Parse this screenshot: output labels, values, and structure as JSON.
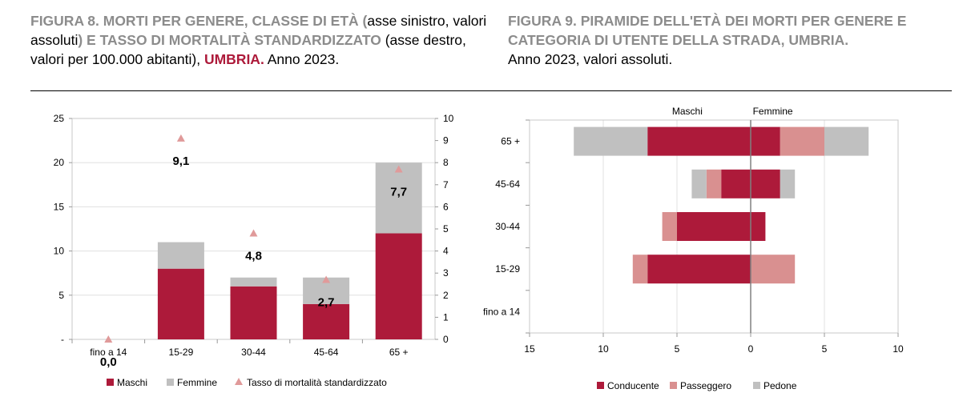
{
  "figure8": {
    "title_parts": [
      {
        "text": "FIGURA 8. MORTI PER GENERE, CLASSE DI ETÀ (",
        "style": "hl"
      },
      {
        "text": "asse sinistro, valori assoluti",
        "style": "pl"
      },
      {
        "text": ") E TASSO DI MORTALITÀ STANDARDIZZATO",
        "style": "hl"
      },
      {
        "text": " (asse destro, valori per 100.000 abitanti), ",
        "style": "pl"
      },
      {
        "text": "UMBRIA.",
        "style": "hl"
      },
      {
        "text": " Anno 2023.",
        "style": "pl"
      }
    ]
  },
  "figure9": {
    "title_parts": [
      {
        "text": "FIGURA 9. PIRAMIDE DELL'ETÀ DEI MORTI PER GENERE E CATEGORIA DI UTENTE DELLA STRADA, UMBRIA.",
        "style": "hl"
      },
      {
        "text": "Anno 2023, valori assoluti.",
        "style": "pl",
        "newline": true
      }
    ]
  },
  "colors": {
    "maschi": "#ad1a3a",
    "femmine": "#c0c0c0",
    "tasso": "#e09a9a",
    "conducente": "#ad1a3a",
    "passeggero": "#d99090",
    "pedone": "#c0c0c0"
  },
  "chart_data": [
    {
      "type": "bar",
      "stacked": true,
      "categories": [
        "fino a 14",
        "15-29",
        "30-44",
        "45-64",
        "65 +"
      ],
      "series": [
        {
          "name": "Maschi",
          "values": [
            0,
            8,
            6,
            4,
            12
          ]
        },
        {
          "name": "Femmine",
          "values": [
            0,
            3,
            1,
            3,
            8
          ]
        }
      ],
      "secondary_series": {
        "name": "Tasso di mortalità standardizzato",
        "type": "scatter",
        "marker": "triangle",
        "values": [
          0.0,
          9.1,
          4.8,
          2.7,
          7.7
        ]
      },
      "data_labels": [
        "0,0",
        "9,1",
        "4,8",
        "2,7",
        "7,7"
      ],
      "ylim": [
        0,
        25
      ],
      "yticks": [
        "-",
        "5",
        "10",
        "15",
        "20",
        "25"
      ],
      "y2lim": [
        0,
        10
      ],
      "y2ticks": [
        "0",
        "1",
        "2",
        "3",
        "4",
        "5",
        "6",
        "7",
        "8",
        "9",
        "10"
      ],
      "grid": true,
      "legend": "bottom"
    },
    {
      "type": "bar",
      "orientation": "horizontal",
      "pyramid": true,
      "side_labels": {
        "left": "Maschi",
        "right": "Femmine"
      },
      "categories": [
        "65 +",
        "45-64",
        "30-44",
        "15-29",
        "fino a 14"
      ],
      "series": [
        {
          "name": "Conducente",
          "maschi": [
            7,
            2,
            5,
            7,
            0
          ],
          "femmine": [
            2,
            2,
            1,
            0,
            0
          ]
        },
        {
          "name": "Passeggero",
          "maschi": [
            0,
            1,
            1,
            1,
            0
          ],
          "femmine": [
            3,
            0,
            0,
            3,
            0
          ]
        },
        {
          "name": "Pedone",
          "maschi": [
            5,
            1,
            0,
            0,
            0
          ],
          "femmine": [
            3,
            1,
            0,
            0,
            0
          ]
        }
      ],
      "xlim": [
        -15,
        10
      ],
      "xticks": [
        "15",
        "10",
        "5",
        "0",
        "5",
        "10"
      ],
      "grid": true,
      "legend": "bottom"
    }
  ]
}
